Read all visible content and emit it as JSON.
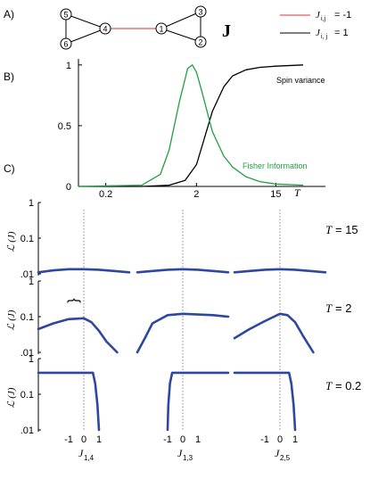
{
  "panel_labels": {
    "a": "A)",
    "b": "B)",
    "c": "C)"
  },
  "panel_a": {
    "nodes": [
      "1",
      "2",
      "3",
      "4",
      "5",
      "6"
    ],
    "matrix_label": "J",
    "legend": [
      {
        "color": "#e03030",
        "label_symbol": "J",
        "label_sub": "i,j",
        "label_value": "= -1"
      },
      {
        "color": "#000000",
        "label_symbol": "J",
        "label_sub": "i, j",
        "label_value": "= 1"
      }
    ]
  },
  "chart_data": [
    {
      "type": "line",
      "xscale": "log",
      "x_ticks": [
        "0.2",
        "2",
        "15"
      ],
      "x_axis_symbol": "T",
      "y_ticks": [
        "0",
        "0.5",
        "1"
      ],
      "ylim": [
        0,
        1.05
      ],
      "series": [
        {
          "name": "Spin variance",
          "color": "#000000",
          "x": [
            0.1,
            0.5,
            1.0,
            1.5,
            2.0,
            2.5,
            3.0,
            4.0,
            5.0,
            7.0,
            10.0,
            15.0,
            30.0
          ],
          "y": [
            0.0,
            0.0,
            0.01,
            0.05,
            0.18,
            0.42,
            0.62,
            0.82,
            0.91,
            0.96,
            0.98,
            0.99,
            1.0
          ]
        },
        {
          "name": "Fisher Information",
          "color": "#20a040",
          "x": [
            0.1,
            0.5,
            0.8,
            1.0,
            1.3,
            1.6,
            1.8,
            2.0,
            2.3,
            2.7,
            3.0,
            4.0,
            5.0,
            7.0,
            10.0,
            15.0,
            30.0
          ],
          "y": [
            0.0,
            0.01,
            0.1,
            0.3,
            0.7,
            0.97,
            1.0,
            0.94,
            0.78,
            0.58,
            0.45,
            0.25,
            0.16,
            0.08,
            0.04,
            0.02,
            0.01
          ]
        }
      ]
    },
    {
      "type": "line",
      "yscale": "log",
      "y_ticks": [
        "1",
        "0.1",
        ".01"
      ],
      "y_axis_label": "ℒ (J)",
      "x_ticks": [
        "-1",
        "0",
        "1"
      ],
      "x_labels": [
        {
          "symbol": "J",
          "sub": "1,4"
        },
        {
          "symbol": "J",
          "sub": "1,3"
        },
        {
          "symbol": "J",
          "sub": "2,5"
        }
      ],
      "rows": [
        {
          "label": "T = 15",
          "label_symbol": "T",
          "label_value": "= 15",
          "curves": [
            {
              "x": [
                -3,
                -2,
                -1,
                0,
                1,
                2,
                3
              ],
              "y": [
                0.011,
                0.0125,
                0.0135,
                0.0135,
                0.013,
                0.012,
                0.011
              ]
            },
            {
              "x": [
                -3,
                -2,
                -1,
                0,
                1,
                2,
                3
              ],
              "y": [
                0.011,
                0.012,
                0.013,
                0.0135,
                0.013,
                0.012,
                0.011
              ]
            },
            {
              "x": [
                -3,
                -2,
                -1,
                0,
                1,
                2,
                3
              ],
              "y": [
                0.011,
                0.012,
                0.013,
                0.0135,
                0.013,
                0.012,
                0.011
              ]
            }
          ]
        },
        {
          "label": "T = 2",
          "label_symbol": "T",
          "label_value": "= 2",
          "curves": [
            {
              "x": [
                -3,
                -2,
                -1,
                0,
                0.5,
                1,
                1.5,
                2.2
              ],
              "y": [
                0.045,
                0.065,
                0.085,
                0.09,
                0.07,
                0.04,
                0.02,
                0.01
              ]
            },
            {
              "x": [
                -3,
                -2.5,
                -2,
                -1,
                0,
                1,
                2,
                3
              ],
              "y": [
                0.01,
                0.025,
                0.065,
                0.11,
                0.12,
                0.115,
                0.11,
                0.1
              ]
            },
            {
              "x": [
                -3,
                -2,
                -1,
                0,
                0.5,
                1,
                1.5,
                2.2
              ],
              "y": [
                0.025,
                0.045,
                0.075,
                0.12,
                0.11,
                0.07,
                0.03,
                0.01
              ]
            }
          ]
        },
        {
          "label": "T = 0.2",
          "label_symbol": "T",
          "label_value": "= 0.2",
          "curves": [
            {
              "x": [
                -3,
                -2,
                -1,
                0,
                0.6,
                0.75,
                0.9,
                1.0
              ],
              "y": [
                0.4,
                0.4,
                0.4,
                0.4,
                0.4,
                0.2,
                0.05,
                0.01
              ]
            },
            {
              "x": [
                -1.0,
                -0.95,
                -0.85,
                -0.7,
                0,
                1,
                2,
                3
              ],
              "y": [
                0.01,
                0.05,
                0.2,
                0.4,
                0.4,
                0.4,
                0.4,
                0.4
              ]
            },
            {
              "x": [
                -3,
                -2,
                -1,
                0,
                0.6,
                0.75,
                0.9,
                1.0
              ],
              "y": [
                0.4,
                0.4,
                0.4,
                0.4,
                0.4,
                0.2,
                0.05,
                0.01
              ]
            }
          ]
        }
      ],
      "brace_marker": "{",
      "line_color": "#2e47a0"
    }
  ]
}
